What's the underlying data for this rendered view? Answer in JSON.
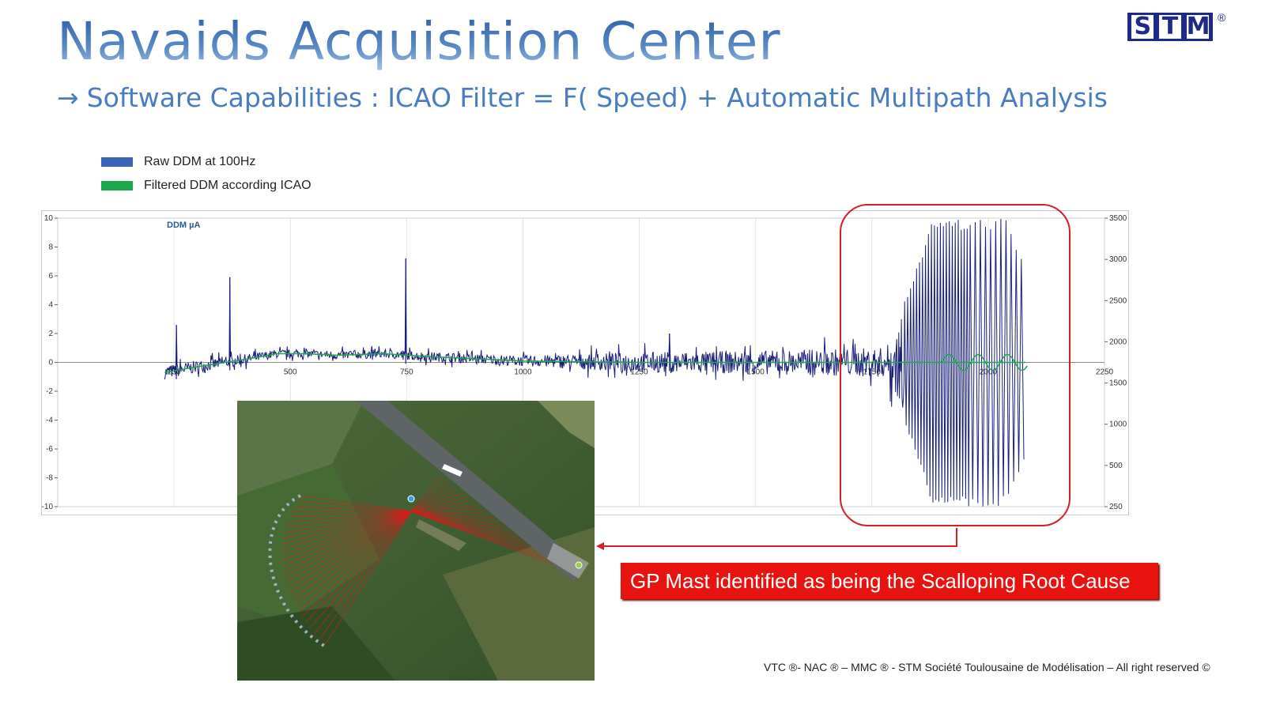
{
  "header": {
    "title": "Navaids Acquisition Center",
    "subtitle_arrow": "→",
    "subtitle": "Software Capabilities : ICAO Filter = F( Speed) + Automatic Multipath Analysis"
  },
  "logo": {
    "letters": [
      "S",
      "T",
      "M"
    ],
    "registered": "®",
    "color": "#1d2a8a"
  },
  "legend": [
    {
      "label": "Raw DDM at 100Hz",
      "color": "#3a63b8"
    },
    {
      "label": "Filtered DDM according ICAO",
      "color": "#1aa84a"
    }
  ],
  "callout": {
    "text": "GP Mast identified as being the Scalloping Root Cause",
    "color": "#e8120f"
  },
  "footer": "VTC ®- NAC ® – MMC ® - STM Société Toulousaine de Modélisation – All right reserved ©",
  "chart_data": {
    "type": "line",
    "ylabel": "DDM µA",
    "x_ticks": [
      "250",
      "500",
      "750",
      "1000",
      "1250",
      "1500",
      "1750",
      "2000",
      "2250"
    ],
    "x_range": [
      0,
      2250
    ],
    "y_left_ticks": [
      10,
      8,
      6,
      4,
      2,
      0,
      -2,
      -4,
      -6,
      -8,
      -10
    ],
    "y_left_range": [
      -10,
      10
    ],
    "y_right_ticks": [
      3500,
      3000,
      2500,
      2000,
      1500,
      1000,
      500,
      250
    ],
    "grid": true,
    "series": [
      {
        "name": "Raw DDM at 100Hz",
        "color": "#1b1f7a",
        "spikes": [
          {
            "x": 255,
            "y": 2.6
          },
          {
            "x": 370,
            "y": 5.9
          },
          {
            "x": 748,
            "y": 7.2
          },
          {
            "x": 1315,
            "y": 2.0
          }
        ],
        "envelope": [
          {
            "x": 230,
            "amp": 0.6
          },
          {
            "x": 500,
            "amp": 0.35
          },
          {
            "x": 1000,
            "amp": 0.45
          },
          {
            "x": 1250,
            "amp": 0.9
          },
          {
            "x": 1500,
            "amp": 1.0
          },
          {
            "x": 1780,
            "amp": 1.3
          },
          {
            "x": 1830,
            "amp": 5.0
          },
          {
            "x": 1880,
            "amp": 10
          },
          {
            "x": 2040,
            "amp": 10
          },
          {
            "x": 2080,
            "amp": 6.5
          }
        ]
      },
      {
        "name": "Filtered DDM according ICAO",
        "color": "#1aa84a",
        "points": [
          {
            "x": 230,
            "y": -0.7
          },
          {
            "x": 300,
            "y": -0.3
          },
          {
            "x": 360,
            "y": 0.0
          },
          {
            "x": 420,
            "y": 0.3
          },
          {
            "x": 470,
            "y": 0.6
          },
          {
            "x": 530,
            "y": 0.6
          },
          {
            "x": 600,
            "y": 0.5
          },
          {
            "x": 700,
            "y": 0.6
          },
          {
            "x": 800,
            "y": 0.4
          },
          {
            "x": 1000,
            "y": 0.1
          },
          {
            "x": 1250,
            "y": 0.0
          },
          {
            "x": 1500,
            "y": 0.0
          },
          {
            "x": 1800,
            "y": 0.0
          },
          {
            "x": 2080,
            "y": 0.0
          }
        ],
        "oscillation": {
          "x_start": 1900,
          "x_end": 2085,
          "amp": 0.55
        }
      }
    ]
  }
}
